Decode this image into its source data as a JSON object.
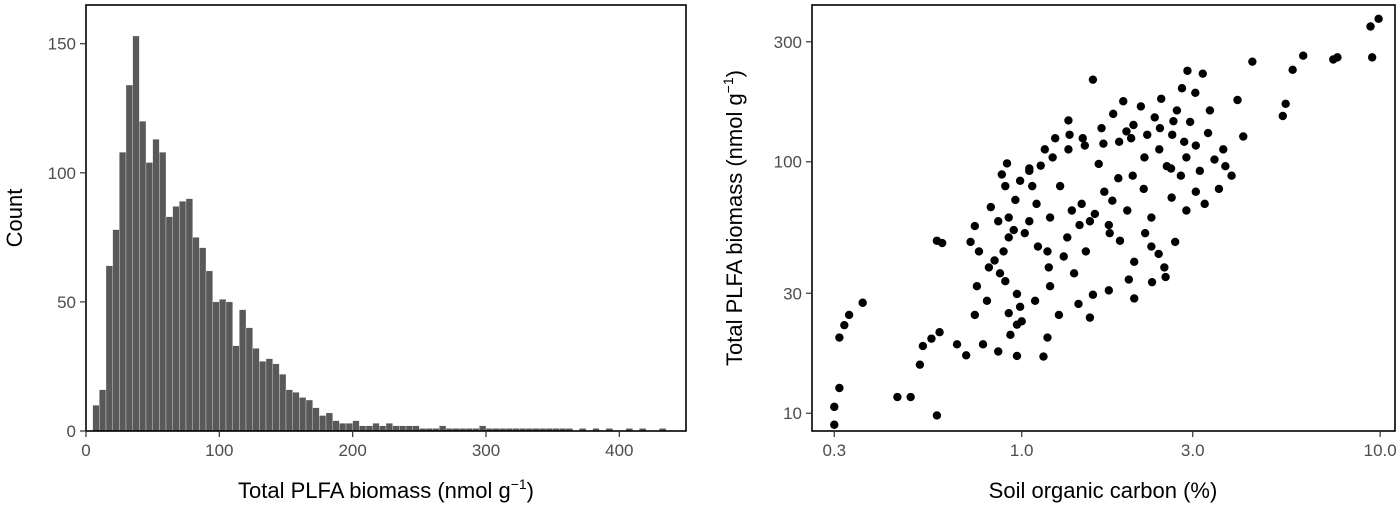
{
  "chart_data": [
    {
      "type": "bar",
      "subtype": "histogram",
      "xlabel": "Total PLFA biomass (nmol g",
      "xlabel_sup": "−1",
      "xlabel_close": ")",
      "ylabel": "Count",
      "xlim": [
        0,
        450
      ],
      "ylim": [
        0,
        165
      ],
      "xticks": [
        0,
        100,
        200,
        300,
        400
      ],
      "yticks": [
        0,
        50,
        100,
        150
      ],
      "bin_width": 5,
      "bar_color": "#595959",
      "bin_starts": [
        5,
        10,
        15,
        20,
        25,
        30,
        35,
        40,
        45,
        50,
        55,
        60,
        65,
        70,
        75,
        80,
        85,
        90,
        95,
        100,
        105,
        110,
        115,
        120,
        125,
        130,
        135,
        140,
        145,
        150,
        155,
        160,
        165,
        170,
        175,
        180,
        185,
        190,
        195,
        200,
        205,
        210,
        215,
        220,
        225,
        230,
        235,
        240,
        245,
        250,
        255,
        260,
        265,
        270,
        275,
        280,
        285,
        290,
        295,
        300,
        305,
        310,
        315,
        320,
        325,
        330,
        335,
        340,
        345,
        350,
        355,
        360,
        365,
        370,
        375,
        380,
        385,
        390,
        395,
        400,
        405,
        410,
        415,
        420,
        425,
        430,
        435,
        440
      ],
      "counts": [
        10,
        16,
        64,
        78,
        108,
        134,
        153,
        120,
        104,
        113,
        108,
        83,
        87,
        89,
        90,
        75,
        71,
        62,
        50,
        51,
        50,
        33,
        47,
        40,
        32,
        27,
        28,
        26,
        22,
        16,
        15,
        13,
        12,
        9,
        6,
        7,
        4,
        3,
        3,
        4,
        2,
        2,
        3,
        2,
        3,
        2,
        2,
        2,
        2,
        1,
        1,
        1,
        2,
        1,
        1,
        1,
        1,
        1,
        2,
        1,
        1,
        1,
        1,
        1,
        1,
        1,
        1,
        1,
        1,
        1,
        1,
        1,
        0,
        1,
        0,
        1,
        0,
        1,
        0,
        0,
        1,
        0,
        1,
        0,
        0,
        1,
        0,
        0
      ]
    },
    {
      "type": "scatter",
      "xlabel": "Soil organic carbon (%)",
      "ylabel": "Total PLFA biomass (nmol g",
      "ylabel_sup": "−1",
      "ylabel_close": ")",
      "xscale": "log",
      "yscale": "log",
      "xlim": [
        0.26,
        11
      ],
      "ylim": [
        8.5,
        420
      ],
      "xticks": [
        0.3,
        1.0,
        3.0,
        10.0
      ],
      "xtick_labels": [
        "0.3",
        "1.0",
        "3.0",
        "10.0"
      ],
      "yticks": [
        10,
        30,
        100,
        300
      ],
      "ytick_labels": [
        "10",
        "30",
        "100",
        "300"
      ],
      "point_color": "#000000",
      "points": [
        [
          0.3,
          9.0
        ],
        [
          0.3,
          10.6
        ],
        [
          0.31,
          12.6
        ],
        [
          0.31,
          20.0
        ],
        [
          0.32,
          22.4
        ],
        [
          0.33,
          24.6
        ],
        [
          0.36,
          27.5
        ],
        [
          0.45,
          11.6
        ],
        [
          0.49,
          11.6
        ],
        [
          0.52,
          15.6
        ],
        [
          0.53,
          18.5
        ],
        [
          0.56,
          19.8
        ],
        [
          0.58,
          9.8
        ],
        [
          0.59,
          21.0
        ],
        [
          0.58,
          48.5
        ],
        [
          0.6,
          47.5
        ],
        [
          0.66,
          18.8
        ],
        [
          0.7,
          17.0
        ],
        [
          0.72,
          48.0
        ],
        [
          0.74,
          55.5
        ],
        [
          0.75,
          32.0
        ],
        [
          0.78,
          18.8
        ],
        [
          0.81,
          38.0
        ],
        [
          0.86,
          17.6
        ],
        [
          0.88,
          89.0
        ],
        [
          0.91,
          98.5
        ],
        [
          0.95,
          53.5
        ],
        [
          1.0,
          23.2
        ],
        [
          1.05,
          92.0
        ],
        [
          1.1,
          68.0
        ],
        [
          1.18,
          20.0
        ],
        [
          1.24,
          124.0
        ],
        [
          1.35,
          146.0
        ],
        [
          1.48,
          124.0
        ],
        [
          1.58,
          212.0
        ],
        [
          1.55,
          24.0
        ],
        [
          1.75,
          56.0
        ],
        [
          1.8,
          155.0
        ],
        [
          1.92,
          174.0
        ],
        [
          2.05,
          140.0
        ],
        [
          2.15,
          166.0
        ],
        [
          2.3,
          46.0
        ],
        [
          2.45,
          178.0
        ],
        [
          2.5,
          38.0
        ],
        [
          2.65,
          145.0
        ],
        [
          2.8,
          196.0
        ],
        [
          2.9,
          230.0
        ],
        [
          3.05,
          188.0
        ],
        [
          3.2,
          224.0
        ],
        [
          3.35,
          160.0
        ],
        [
          3.45,
          102.0
        ],
        [
          3.55,
          78.0
        ],
        [
          3.65,
          112.0
        ],
        [
          3.7,
          96.0
        ],
        [
          3.85,
          88.0
        ],
        [
          4.0,
          176.0
        ],
        [
          4.15,
          126.0
        ],
        [
          4.4,
          250.0
        ],
        [
          5.35,
          152.0
        ],
        [
          5.45,
          170.0
        ],
        [
          5.7,
          232.0
        ],
        [
          6.1,
          264.0
        ],
        [
          7.4,
          255.0
        ],
        [
          7.6,
          260.0
        ],
        [
          9.4,
          345.0
        ],
        [
          9.5,
          260.0
        ],
        [
          9.9,
          370.0
        ],
        [
          1.15,
          16.8
        ],
        [
          0.97,
          16.9
        ],
        [
          0.93,
          20.5
        ],
        [
          0.97,
          22.5
        ],
        [
          0.92,
          25.0
        ],
        [
          0.99,
          26.5
        ],
        [
          0.97,
          29.8
        ],
        [
          1.27,
          24.6
        ],
        [
          1.44,
          27.2
        ],
        [
          1.58,
          29.6
        ],
        [
          1.75,
          30.8
        ],
        [
          2.06,
          28.6
        ],
        [
          2.31,
          33.2
        ],
        [
          2.52,
          34.8
        ],
        [
          2.68,
          48.0
        ],
        [
          2.88,
          64.0
        ],
        [
          3.06,
          76.0
        ],
        [
          3.24,
          68.0
        ],
        [
          0.9,
          33.5
        ],
        [
          0.87,
          36.0
        ],
        [
          0.84,
          40.5
        ],
        [
          0.89,
          44.0
        ],
        [
          0.92,
          60.0
        ],
        [
          0.96,
          70.5
        ],
        [
          0.9,
          80.0
        ],
        [
          0.99,
          84.0
        ],
        [
          1.05,
          94.0
        ],
        [
          1.13,
          96.5
        ],
        [
          1.22,
          104.0
        ],
        [
          1.35,
          112.0
        ],
        [
          1.5,
          116.0
        ],
        [
          1.69,
          118.0
        ],
        [
          1.87,
          120.0
        ],
        [
          2.02,
          124.0
        ],
        [
          2.24,
          128.0
        ],
        [
          2.43,
          136.0
        ],
        [
          2.63,
          128.0
        ],
        [
          2.84,
          120.0
        ],
        [
          3.06,
          116.0
        ],
        [
          1.64,
          98.0
        ],
        [
          1.86,
          86.0
        ],
        [
          2.19,
          78.0
        ],
        [
          2.54,
          96.0
        ],
        [
          2.88,
          104.0
        ],
        [
          1.28,
          80.0
        ],
        [
          1.38,
          64.0
        ],
        [
          1.55,
          58.0
        ],
        [
          1.76,
          52.0
        ],
        [
          1.88,
          48.5
        ],
        [
          2.06,
          40.0
        ],
        [
          2.21,
          52.0
        ],
        [
          1.11,
          46.0
        ],
        [
          1.02,
          52.0
        ],
        [
          1.19,
          38.0
        ],
        [
          1.2,
          32.0
        ],
        [
          1.31,
          42.0
        ],
        [
          1.4,
          36.0
        ],
        [
          1.47,
          68.0
        ],
        [
          1.7,
          76.0
        ],
        [
          1.97,
          64.0
        ],
        [
          2.3,
          60.0
        ],
        [
          2.62,
          72.0
        ],
        [
          2.78,
          88.0
        ],
        [
          1.05,
          58.0
        ],
        [
          0.92,
          50.0
        ],
        [
          0.86,
          58.0
        ],
        [
          0.82,
          66.0
        ],
        [
          0.76,
          44.0
        ],
        [
          0.8,
          28.0
        ],
        [
          0.74,
          24.6
        ],
        [
          1.09,
          28.0
        ],
        [
          1.18,
          44.0
        ],
        [
          1.34,
          50.0
        ],
        [
          1.45,
          56.0
        ],
        [
          1.6,
          62.0
        ],
        [
          1.79,
          70.0
        ],
        [
          2.04,
          88.0
        ],
        [
          2.2,
          104.0
        ],
        [
          2.42,
          112.0
        ],
        [
          2.61,
          94.0
        ],
        [
          3.14,
          92.0
        ],
        [
          3.31,
          130.0
        ],
        [
          2.95,
          144.0
        ],
        [
          2.71,
          160.0
        ],
        [
          2.35,
          150.0
        ],
        [
          1.96,
          132.0
        ],
        [
          1.67,
          136.0
        ],
        [
          1.36,
          128.0
        ],
        [
          1.16,
          112.0
        ],
        [
          1.07,
          80.0
        ],
        [
          1.2,
          60.0
        ],
        [
          1.51,
          44.0
        ],
        [
          1.99,
          34.0
        ],
        [
          2.41,
          43.0
        ]
      ]
    }
  ]
}
